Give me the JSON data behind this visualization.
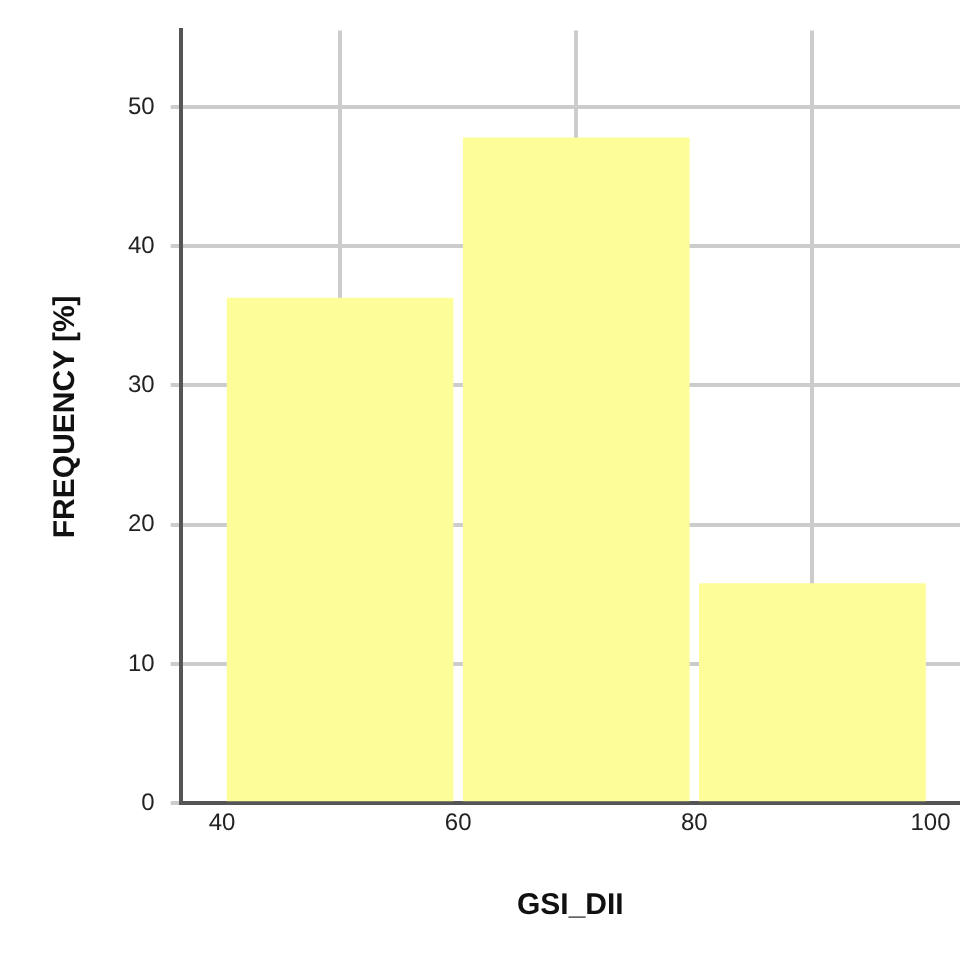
{
  "chart_data": {
    "type": "histogram",
    "xlabel": "GSI_DII",
    "ylabel": "FREQUENCY [%]",
    "bins": [
      40,
      60,
      80,
      100
    ],
    "values": [
      36.3,
      47.8,
      15.8
    ],
    "color": "#fdfd9a",
    "xlim": [
      36.5,
      102.5
    ],
    "xticks": [
      40,
      60,
      80,
      100
    ],
    "ylim": [
      0,
      55.5
    ],
    "yticks": [
      0,
      10,
      20,
      30,
      40,
      50
    ],
    "grid": true
  }
}
